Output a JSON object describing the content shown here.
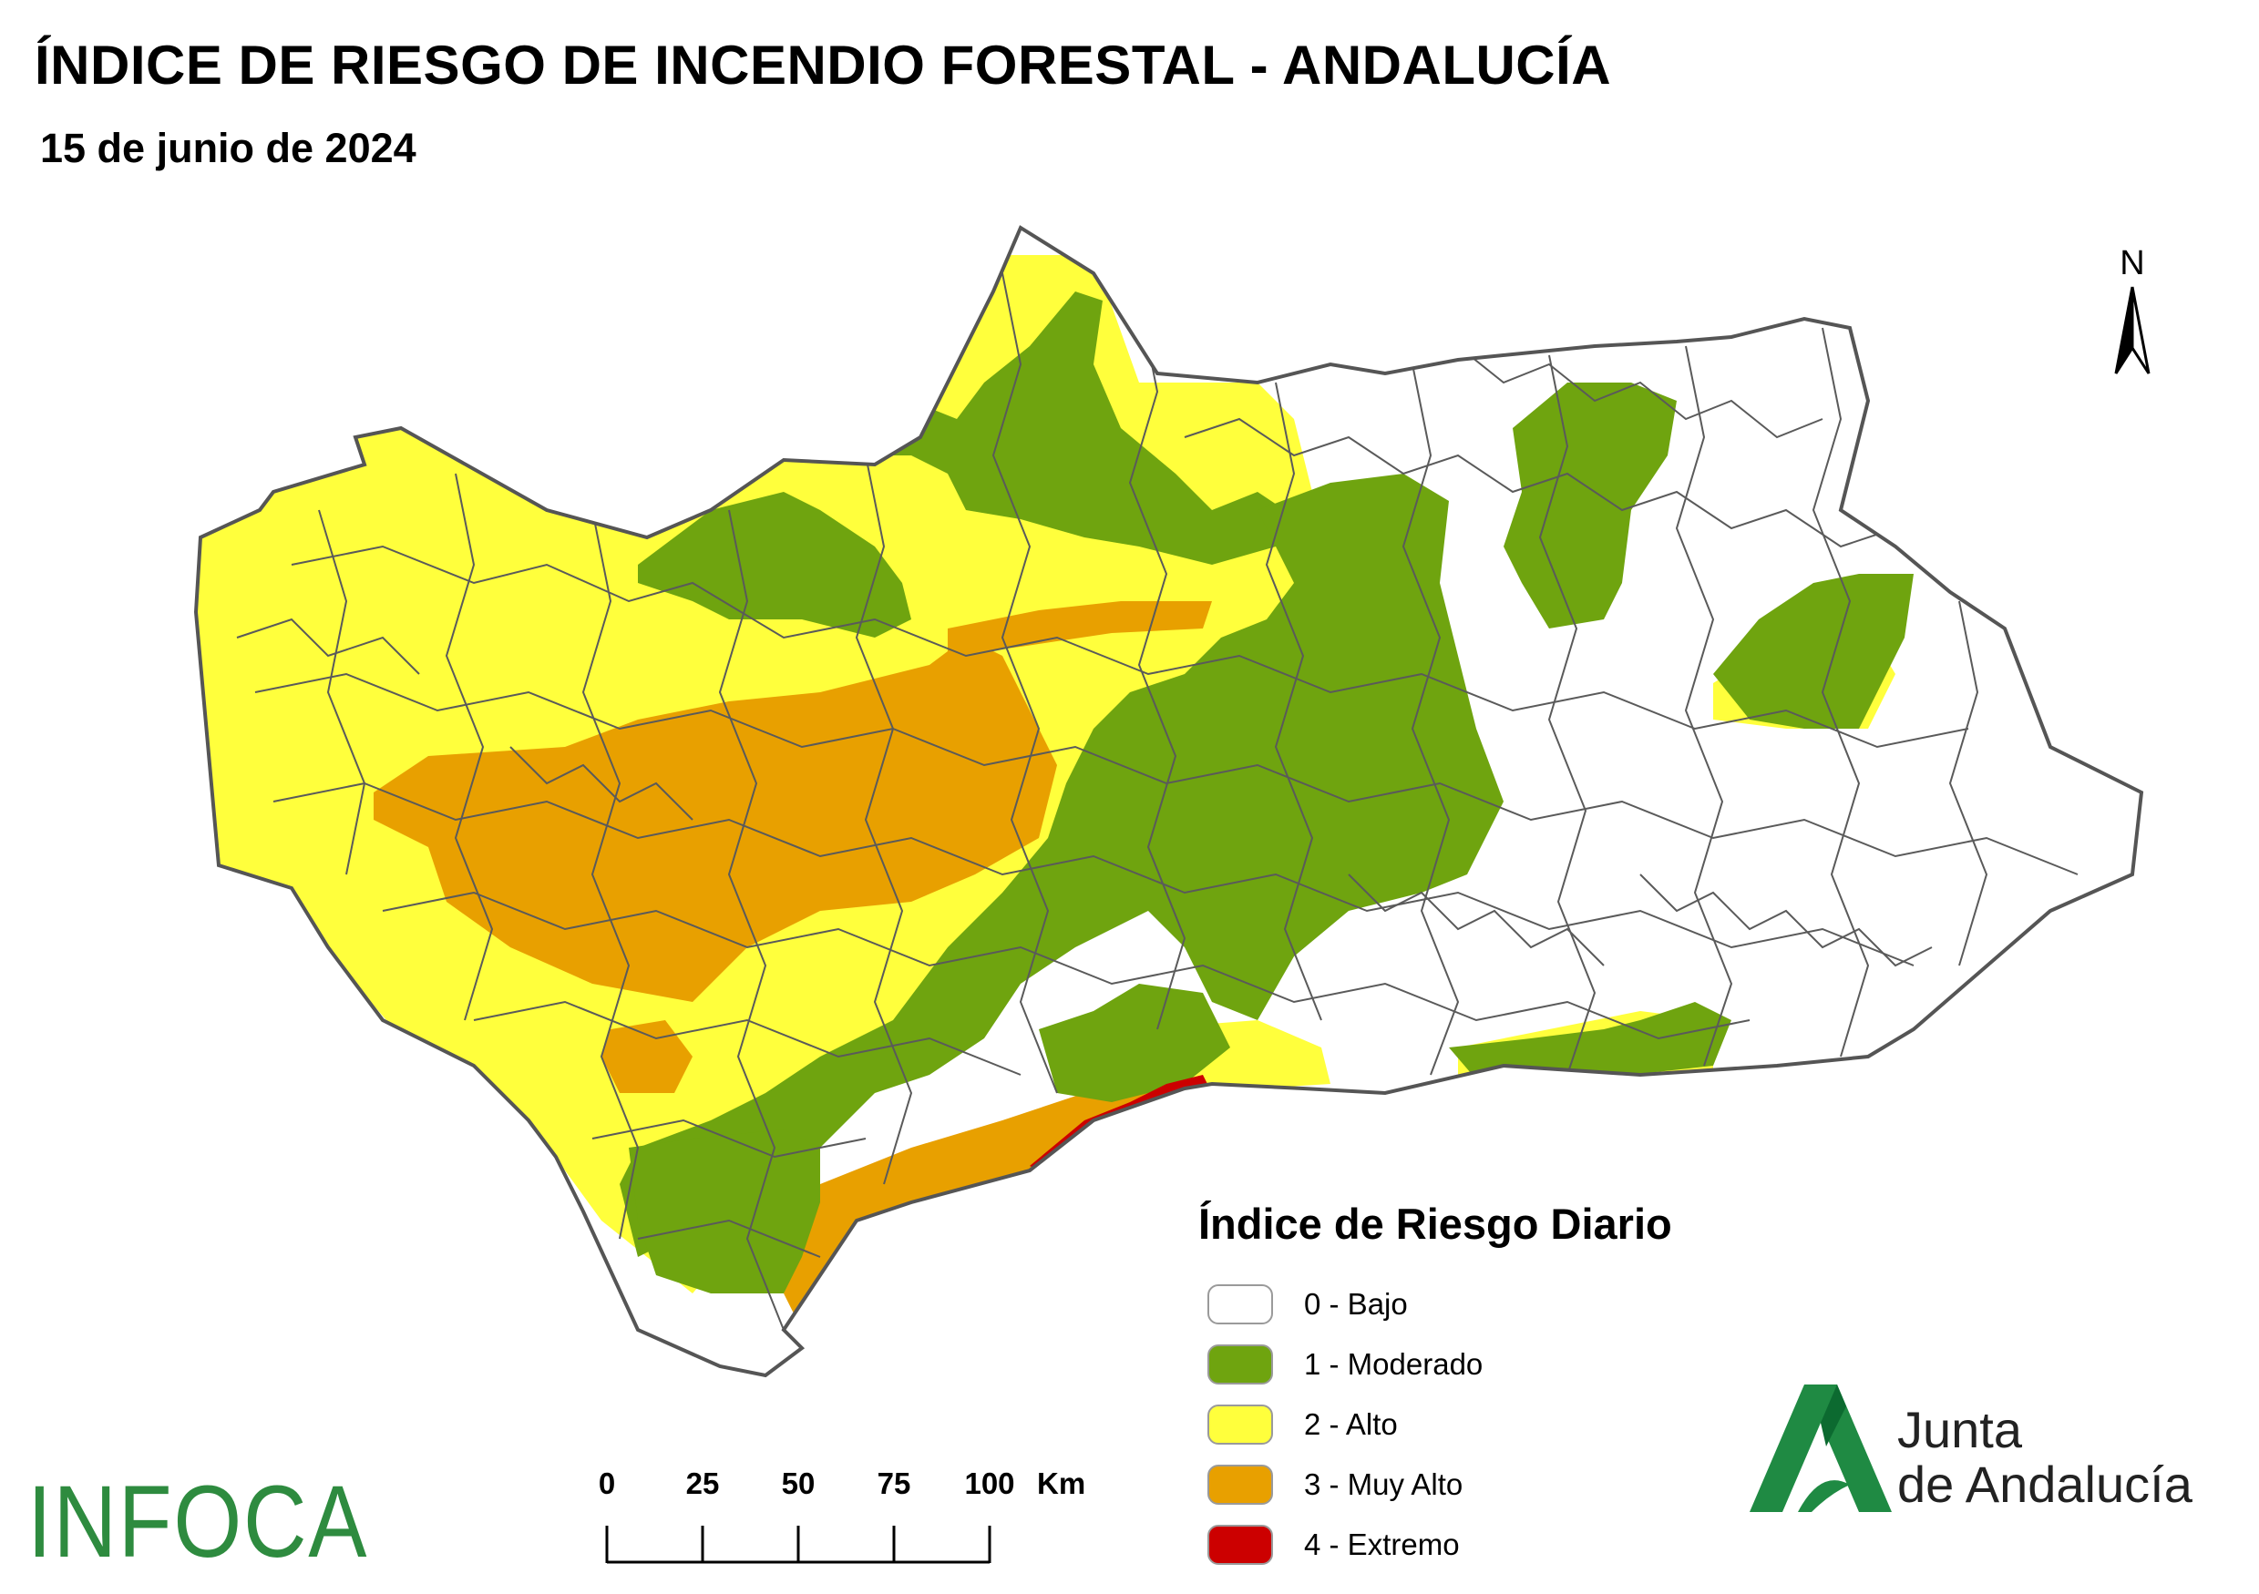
{
  "title": "ÍNDICE DE RIESGO DE INCENDIO FORESTAL - ANDALUCÍA",
  "date": "15 de junio de 2024",
  "north_label": "N",
  "legend": {
    "title": "Índice de Riesgo Diario",
    "items": [
      {
        "label": "0 - Bajo",
        "color": "#ffffff"
      },
      {
        "label": "1 - Moderado",
        "color": "#6fa40f"
      },
      {
        "label": "2 - Alto",
        "color": "#ffff3c"
      },
      {
        "label": "3 - Muy Alto",
        "color": "#e8a000"
      },
      {
        "label": "4 - Extremo",
        "color": "#cc0000"
      }
    ]
  },
  "scale": {
    "ticks": [
      "0",
      "25",
      "50",
      "75",
      "100"
    ],
    "unit": "Km"
  },
  "logos": {
    "infoca": "INFOCA",
    "junta_line1": "Junta",
    "junta_line2": "de Andalucía"
  },
  "map_colors": {
    "bajo": "#ffffff",
    "moderado": "#6fa40f",
    "alto": "#ffff3c",
    "muy_alto": "#e8a000",
    "extremo": "#cc0000",
    "boundary": "#555555"
  }
}
